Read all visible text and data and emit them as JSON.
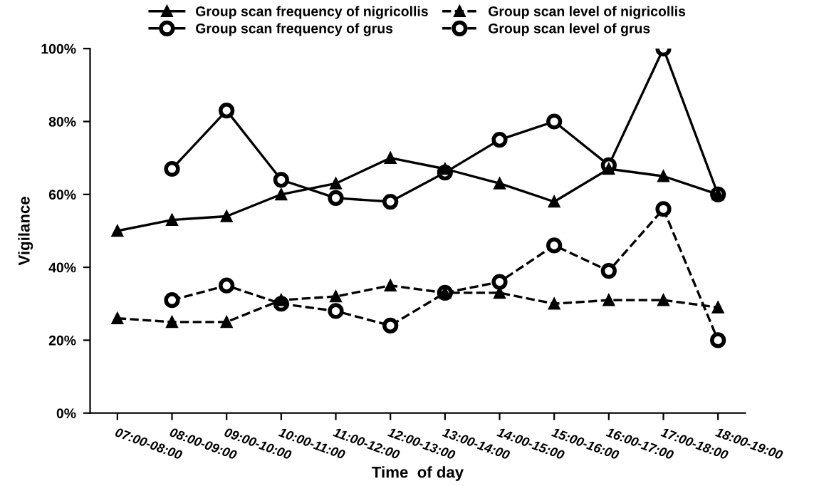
{
  "chart_data": {
    "type": "line",
    "xlabel": "Time  of day",
    "ylabel": "Vigilance",
    "categories": [
      "07:00-08:00",
      "08:00-09:00",
      "09:00-10:00",
      "10:00-11:00",
      "11:00-12:00",
      "12:00-13:00",
      "13:00-14:00",
      "14:00-15:00",
      "15:00-16:00",
      "16:00-17:00",
      "17:00-18:00",
      "18:00-19:00"
    ],
    "series": [
      {
        "name": "Group scan frequency of nigricollis",
        "color": "#000000",
        "marker": "triangle",
        "line_style": "solid",
        "values": [
          50,
          53,
          54,
          60,
          63,
          70,
          67,
          63,
          58,
          67,
          65,
          60
        ]
      },
      {
        "name": "Group scan level of nigricollis",
        "color": "#000000",
        "marker": "triangle",
        "line_style": "dashed",
        "values": [
          26,
          25,
          25,
          31,
          32,
          35,
          33,
          33,
          30,
          31,
          31,
          29
        ]
      },
      {
        "name": "Group scan frequency of grus",
        "color": "#000000",
        "marker": "circle",
        "line_style": "solid",
        "values": [
          null,
          67,
          83,
          64,
          59,
          58,
          66,
          75,
          80,
          68,
          100,
          60
        ]
      },
      {
        "name": "Group scan level of grus",
        "color": "#000000",
        "marker": "circle",
        "line_style": "dashed",
        "values": [
          null,
          31,
          35,
          30,
          28,
          24,
          33,
          36,
          46,
          39,
          56,
          20
        ]
      }
    ],
    "ylim": [
      0,
      100
    ],
    "yticks": [
      {
        "value": 0,
        "label": "0%"
      },
      {
        "value": 20,
        "label": "20%"
      },
      {
        "value": 40,
        "label": "40%"
      },
      {
        "value": 60,
        "label": "60%"
      },
      {
        "value": 80,
        "label": "80%"
      },
      {
        "value": 100,
        "label": "100%"
      }
    ],
    "grid": false,
    "legend": "top"
  }
}
